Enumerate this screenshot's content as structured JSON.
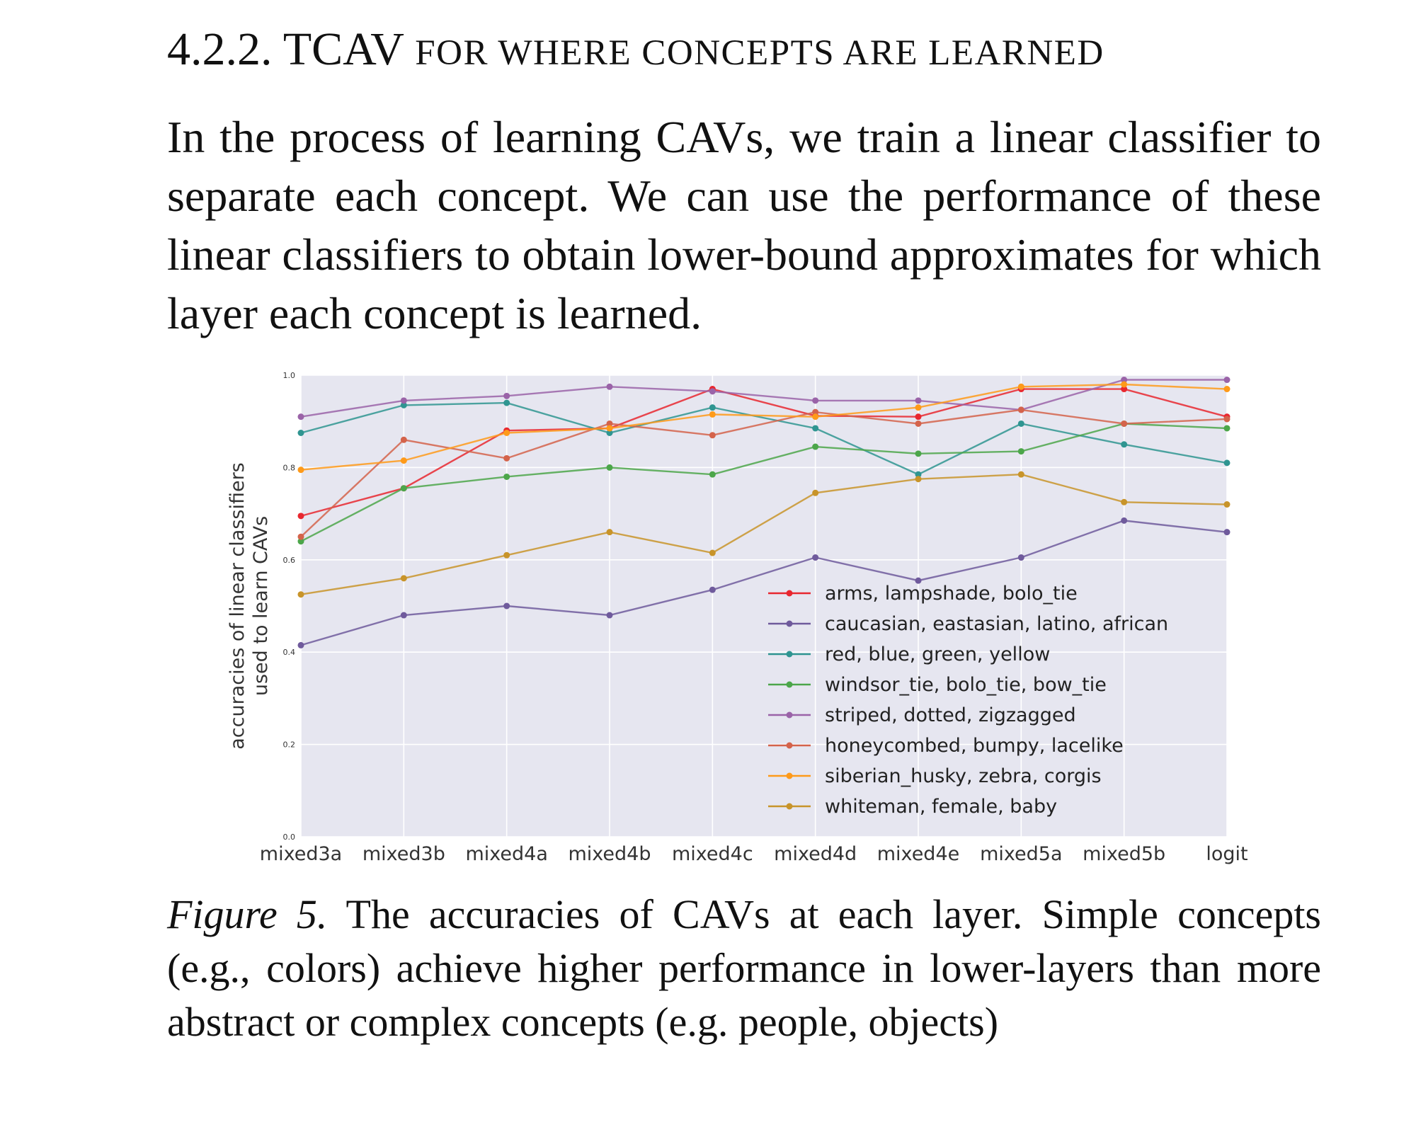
{
  "section": {
    "number": "4.2.2.",
    "title_lead": "TCAV",
    "title_rest": "for where concepts are learned"
  },
  "body_text": "In the process of learning CAVs, we train a linear classifier to separate each concept.  We can use the performance of these linear classifiers to obtain lower-bound approximates for which layer each concept is learned.",
  "caption": {
    "label": "Figure 5.",
    "text": "The accuracies of CAVs at each layer. Simple concepts (e.g., colors) achieve higher performance in lower-layers than more abstract or complex concepts (e.g. people, objects)"
  },
  "chart_data": {
    "type": "line",
    "title": "",
    "xlabel": "",
    "ylabel": [
      "accuracies of linear classifiers",
      "used to learn CAVs"
    ],
    "categories": [
      "mixed3a",
      "mixed3b",
      "mixed4a",
      "mixed4b",
      "mixed4c",
      "mixed4d",
      "mixed4e",
      "mixed5a",
      "mixed5b",
      "logit"
    ],
    "ylim": [
      0.0,
      1.0
    ],
    "yticks": [
      "0.0",
      "0.2",
      "0.4",
      "0.6",
      "0.8",
      "1.0"
    ],
    "grid": true,
    "background": "#e6e6f0",
    "legend_position": "lower-right",
    "series": [
      {
        "name": "arms, lampshade, bolo_tie",
        "color": "#e8272f",
        "values": [
          0.695,
          0.755,
          0.88,
          0.885,
          0.97,
          0.912,
          0.91,
          0.97,
          0.97,
          0.91
        ]
      },
      {
        "name": "caucasian, eastasian, latino, african",
        "color": "#6f5a9c",
        "values": [
          0.415,
          0.48,
          0.5,
          0.48,
          0.535,
          0.605,
          0.555,
          0.605,
          0.685,
          0.66
        ]
      },
      {
        "name": "red, blue, green, yellow",
        "color": "#2f9591",
        "values": [
          0.875,
          0.935,
          0.94,
          0.875,
          0.93,
          0.885,
          0.785,
          0.895,
          0.85,
          0.81
        ]
      },
      {
        "name": "windsor_tie, bolo_tie, bow_tie",
        "color": "#4ca64a",
        "values": [
          0.64,
          0.755,
          0.78,
          0.8,
          0.785,
          0.845,
          0.83,
          0.835,
          0.895,
          0.885
        ]
      },
      {
        "name": "striped, dotted, zigzagged",
        "color": "#9a63a8",
        "values": [
          0.91,
          0.945,
          0.955,
          0.975,
          0.965,
          0.945,
          0.945,
          0.925,
          0.99,
          0.99
        ]
      },
      {
        "name": "honeycombed, bumpy, lacelike",
        "color": "#d4634b",
        "values": [
          0.65,
          0.86,
          0.82,
          0.895,
          0.87,
          0.92,
          0.895,
          0.925,
          0.895,
          0.905
        ]
      },
      {
        "name": "siberian_husky, zebra, corgis",
        "color": "#fe9a1a",
        "values": [
          0.795,
          0.815,
          0.875,
          0.885,
          0.915,
          0.91,
          0.93,
          0.975,
          0.98,
          0.97
        ]
      },
      {
        "name": "whiteman, female, baby",
        "color": "#c8942a",
        "values": [
          0.525,
          0.56,
          0.61,
          0.66,
          0.615,
          0.745,
          0.775,
          0.785,
          0.725,
          0.72
        ]
      }
    ]
  }
}
